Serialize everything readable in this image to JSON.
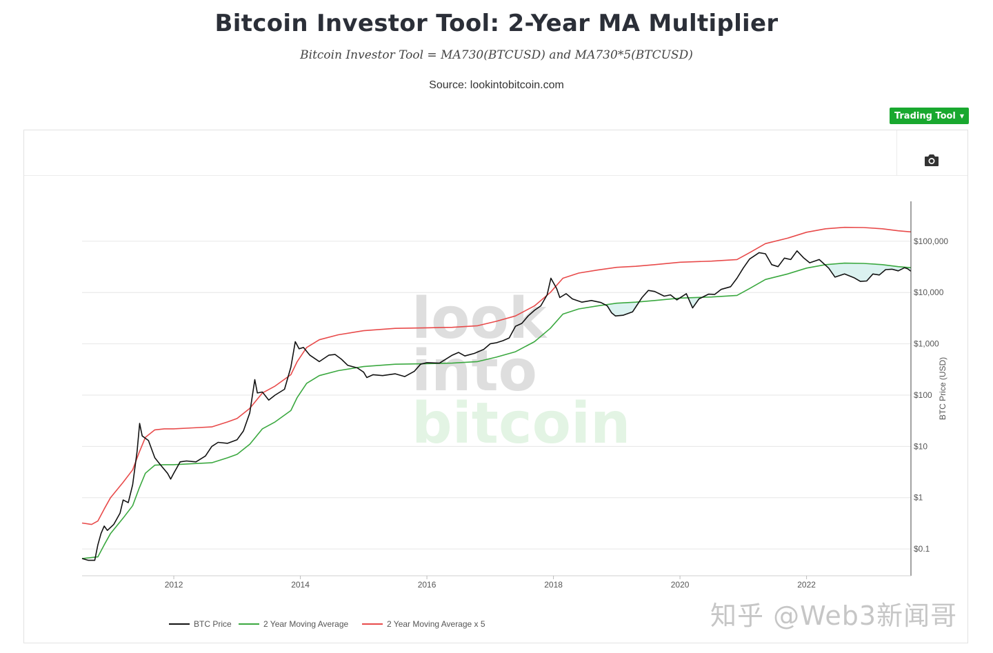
{
  "header": {
    "title": "Bitcoin Investor Tool: 2-Year MA Multiplier",
    "formula": "Bitcoin Investor Tool = MA730(BTCUSD) and MA730*5(BTCUSD)",
    "source": "Source: lookintobitcoin.com"
  },
  "toolbar": {
    "trading_tool_label": "Trading Tool",
    "caret": "▼",
    "camera_icon": "camera-icon"
  },
  "watermark": {
    "line1": "look",
    "line2": "into",
    "line3": "bitcoin",
    "corner": "知乎 @Web3新闻哥"
  },
  "colors": {
    "price": "#111111",
    "ma": "#3aa83f",
    "ma5": "#e84a4a",
    "fill": "#d7f1ee",
    "grid": "#e6e6e6",
    "accent": "#19a82f"
  },
  "chart_data": {
    "type": "line",
    "title": "Bitcoin Investor Tool: 2-Year MA Multiplier",
    "xlabel": "",
    "ylabel": "BTC Price (USD)",
    "y_scale": "log",
    "ylim": [
      0.03,
      600000
    ],
    "xlim": [
      2010.55,
      2023.65
    ],
    "x_ticks": [
      {
        "value": 2012,
        "label": "2012"
      },
      {
        "value": 2014,
        "label": "2014"
      },
      {
        "value": 2016,
        "label": "2016"
      },
      {
        "value": 2018,
        "label": "2018"
      },
      {
        "value": 2020,
        "label": "2020"
      },
      {
        "value": 2022,
        "label": "2022"
      }
    ],
    "y_ticks": [
      {
        "value": 0.1,
        "label": "$0.1"
      },
      {
        "value": 1,
        "label": "$1"
      },
      {
        "value": 10,
        "label": "$10"
      },
      {
        "value": 100,
        "label": "$100"
      },
      {
        "value": 1000,
        "label": "$1,000"
      },
      {
        "value": 10000,
        "label": "$10,000"
      },
      {
        "value": 100000,
        "label": "$100,000"
      }
    ],
    "legend_position": "bottom-left",
    "series": [
      {
        "name": "BTC Price",
        "key": "price",
        "points": [
          [
            2010.55,
            0.065
          ],
          [
            2010.65,
            0.06
          ],
          [
            2010.75,
            0.06
          ],
          [
            2010.8,
            0.12
          ],
          [
            2010.85,
            0.2
          ],
          [
            2010.9,
            0.28
          ],
          [
            2010.95,
            0.23
          ],
          [
            2011.05,
            0.3
          ],
          [
            2011.15,
            0.5
          ],
          [
            2011.2,
            0.9
          ],
          [
            2011.28,
            0.8
          ],
          [
            2011.35,
            1.8
          ],
          [
            2011.42,
            8.0
          ],
          [
            2011.46,
            28.0
          ],
          [
            2011.5,
            16.0
          ],
          [
            2011.6,
            13.0
          ],
          [
            2011.7,
            6.0
          ],
          [
            2011.8,
            4.2
          ],
          [
            2011.9,
            3.0
          ],
          [
            2011.95,
            2.3
          ],
          [
            2012.0,
            3.0
          ],
          [
            2012.1,
            5.0
          ],
          [
            2012.2,
            5.2
          ],
          [
            2012.35,
            5.0
          ],
          [
            2012.5,
            6.5
          ],
          [
            2012.6,
            10.0
          ],
          [
            2012.7,
            12.0
          ],
          [
            2012.85,
            11.5
          ],
          [
            2013.0,
            13.5
          ],
          [
            2013.1,
            20.0
          ],
          [
            2013.2,
            45.0
          ],
          [
            2013.28,
            200.0
          ],
          [
            2013.32,
            110.0
          ],
          [
            2013.4,
            115.0
          ],
          [
            2013.5,
            80.0
          ],
          [
            2013.6,
            100.0
          ],
          [
            2013.75,
            130.0
          ],
          [
            2013.85,
            350.0
          ],
          [
            2013.92,
            1100.0
          ],
          [
            2013.98,
            800.0
          ],
          [
            2014.05,
            850.0
          ],
          [
            2014.15,
            600.0
          ],
          [
            2014.3,
            450.0
          ],
          [
            2014.45,
            600.0
          ],
          [
            2014.55,
            620.0
          ],
          [
            2014.65,
            500.0
          ],
          [
            2014.75,
            380.0
          ],
          [
            2014.9,
            340.0
          ],
          [
            2015.0,
            280.0
          ],
          [
            2015.05,
            220.0
          ],
          [
            2015.15,
            250.0
          ],
          [
            2015.3,
            240.0
          ],
          [
            2015.5,
            260.0
          ],
          [
            2015.65,
            230.0
          ],
          [
            2015.8,
            290.0
          ],
          [
            2015.9,
            400.0
          ],
          [
            2016.0,
            430.0
          ],
          [
            2016.2,
            420.0
          ],
          [
            2016.4,
            600.0
          ],
          [
            2016.5,
            680.0
          ],
          [
            2016.6,
            580.0
          ],
          [
            2016.75,
            650.0
          ],
          [
            2016.9,
            780.0
          ],
          [
            2017.0,
            1000.0
          ],
          [
            2017.1,
            1050.0
          ],
          [
            2017.2,
            1150.0
          ],
          [
            2017.3,
            1300.0
          ],
          [
            2017.4,
            2200.0
          ],
          [
            2017.5,
            2500.0
          ],
          [
            2017.6,
            3500.0
          ],
          [
            2017.7,
            4500.0
          ],
          [
            2017.8,
            5500.0
          ],
          [
            2017.9,
            9000.0
          ],
          [
            2017.96,
            19000.0
          ],
          [
            2018.05,
            12000.0
          ],
          [
            2018.1,
            8000.0
          ],
          [
            2018.2,
            9500.0
          ],
          [
            2018.3,
            7500.0
          ],
          [
            2018.45,
            6500.0
          ],
          [
            2018.6,
            7000.0
          ],
          [
            2018.75,
            6400.0
          ],
          [
            2018.85,
            5500.0
          ],
          [
            2018.92,
            4000.0
          ],
          [
            2018.98,
            3500.0
          ],
          [
            2019.1,
            3600.0
          ],
          [
            2019.25,
            4200.0
          ],
          [
            2019.4,
            8000.0
          ],
          [
            2019.5,
            11000.0
          ],
          [
            2019.6,
            10500.0
          ],
          [
            2019.75,
            8500.0
          ],
          [
            2019.85,
            9000.0
          ],
          [
            2019.95,
            7200.0
          ],
          [
            2020.1,
            9500.0
          ],
          [
            2020.2,
            5000.0
          ],
          [
            2020.3,
            7500.0
          ],
          [
            2020.45,
            9300.0
          ],
          [
            2020.55,
            9200.0
          ],
          [
            2020.65,
            11500.0
          ],
          [
            2020.8,
            13000.0
          ],
          [
            2020.9,
            19000.0
          ],
          [
            2021.0,
            30000.0
          ],
          [
            2021.1,
            45000.0
          ],
          [
            2021.25,
            60000.0
          ],
          [
            2021.35,
            57000.0
          ],
          [
            2021.45,
            35000.0
          ],
          [
            2021.55,
            32000.0
          ],
          [
            2021.65,
            47000.0
          ],
          [
            2021.75,
            44000.0
          ],
          [
            2021.85,
            65000.0
          ],
          [
            2021.95,
            48000.0
          ],
          [
            2022.05,
            38000.0
          ],
          [
            2022.2,
            44000.0
          ],
          [
            2022.35,
            30000.0
          ],
          [
            2022.45,
            20000.0
          ],
          [
            2022.6,
            23000.0
          ],
          [
            2022.75,
            19500.0
          ],
          [
            2022.85,
            16500.0
          ],
          [
            2022.95,
            16800.0
          ],
          [
            2023.05,
            23000.0
          ],
          [
            2023.15,
            22000.0
          ],
          [
            2023.25,
            28000.0
          ],
          [
            2023.35,
            28500.0
          ],
          [
            2023.45,
            26500.0
          ],
          [
            2023.55,
            30500.0
          ],
          [
            2023.6,
            29000.0
          ],
          [
            2023.65,
            26000.0
          ]
        ]
      },
      {
        "name": "2 Year Moving Average",
        "key": "ma",
        "points": [
          [
            2010.55,
            0.065
          ],
          [
            2010.8,
            0.07
          ],
          [
            2010.9,
            0.12
          ],
          [
            2011.0,
            0.2
          ],
          [
            2011.2,
            0.4
          ],
          [
            2011.35,
            0.7
          ],
          [
            2011.45,
            1.5
          ],
          [
            2011.55,
            3.0
          ],
          [
            2011.7,
            4.3
          ],
          [
            2011.85,
            4.4
          ],
          [
            2012.0,
            4.4
          ],
          [
            2012.3,
            4.6
          ],
          [
            2012.6,
            4.8
          ],
          [
            2012.85,
            6.0
          ],
          [
            2013.0,
            7.0
          ],
          [
            2013.2,
            11.0
          ],
          [
            2013.4,
            22.0
          ],
          [
            2013.6,
            30.0
          ],
          [
            2013.85,
            50.0
          ],
          [
            2013.95,
            90.0
          ],
          [
            2014.1,
            170.0
          ],
          [
            2014.3,
            240.0
          ],
          [
            2014.6,
            300.0
          ],
          [
            2015.0,
            360.0
          ],
          [
            2015.5,
            400.0
          ],
          [
            2016.0,
            410.0
          ],
          [
            2016.4,
            420.0
          ],
          [
            2016.8,
            450.0
          ],
          [
            2017.1,
            550.0
          ],
          [
            2017.4,
            700.0
          ],
          [
            2017.7,
            1100.0
          ],
          [
            2017.95,
            2000.0
          ],
          [
            2018.15,
            3800.0
          ],
          [
            2018.4,
            4800.0
          ],
          [
            2018.7,
            5500.0
          ],
          [
            2019.0,
            6200.0
          ],
          [
            2019.3,
            6500.0
          ],
          [
            2019.6,
            7000.0
          ],
          [
            2020.0,
            7800.0
          ],
          [
            2020.5,
            8200.0
          ],
          [
            2020.9,
            8800.0
          ],
          [
            2021.1,
            12000.0
          ],
          [
            2021.35,
            18000.0
          ],
          [
            2021.7,
            23000.0
          ],
          [
            2022.0,
            30000.0
          ],
          [
            2022.3,
            35000.0
          ],
          [
            2022.6,
            37500.0
          ],
          [
            2022.9,
            37000.0
          ],
          [
            2023.2,
            35000.0
          ],
          [
            2023.45,
            32000.0
          ],
          [
            2023.65,
            30500.0
          ]
        ]
      },
      {
        "name": "2 Year Moving Average x 5",
        "key": "ma5",
        "points": [
          [
            2010.55,
            0.32
          ],
          [
            2010.7,
            0.3
          ],
          [
            2010.8,
            0.35
          ],
          [
            2010.9,
            0.6
          ],
          [
            2011.0,
            1.0
          ],
          [
            2011.2,
            2.0
          ],
          [
            2011.35,
            3.5
          ],
          [
            2011.45,
            7.5
          ],
          [
            2011.55,
            15.0
          ],
          [
            2011.7,
            21.0
          ],
          [
            2011.85,
            22.0
          ],
          [
            2012.0,
            22.0
          ],
          [
            2012.3,
            23.0
          ],
          [
            2012.6,
            24.0
          ],
          [
            2012.85,
            30.0
          ],
          [
            2013.0,
            35.0
          ],
          [
            2013.2,
            55.0
          ],
          [
            2013.4,
            110.0
          ],
          [
            2013.6,
            150.0
          ],
          [
            2013.85,
            250.0
          ],
          [
            2013.95,
            450.0
          ],
          [
            2014.1,
            850.0
          ],
          [
            2014.3,
            1200.0
          ],
          [
            2014.6,
            1500.0
          ],
          [
            2015.0,
            1800.0
          ],
          [
            2015.5,
            2000.0
          ],
          [
            2016.0,
            2050.0
          ],
          [
            2016.4,
            2100.0
          ],
          [
            2016.8,
            2250.0
          ],
          [
            2017.1,
            2750.0
          ],
          [
            2017.4,
            3500.0
          ],
          [
            2017.7,
            5500.0
          ],
          [
            2017.95,
            10000.0
          ],
          [
            2018.15,
            19000.0
          ],
          [
            2018.4,
            24000.0
          ],
          [
            2018.7,
            27500.0
          ],
          [
            2019.0,
            31000.0
          ],
          [
            2019.3,
            32500.0
          ],
          [
            2019.6,
            35000.0
          ],
          [
            2020.0,
            39000.0
          ],
          [
            2020.5,
            41000.0
          ],
          [
            2020.9,
            44000.0
          ],
          [
            2021.1,
            60000.0
          ],
          [
            2021.35,
            90000.0
          ],
          [
            2021.7,
            115000.0
          ],
          [
            2022.0,
            150000.0
          ],
          [
            2022.3,
            175000.0
          ],
          [
            2022.6,
            187000.0
          ],
          [
            2022.9,
            185000.0
          ],
          [
            2023.2,
            175000.0
          ],
          [
            2023.45,
            160000.0
          ],
          [
            2023.65,
            152000.0
          ]
        ]
      }
    ]
  }
}
